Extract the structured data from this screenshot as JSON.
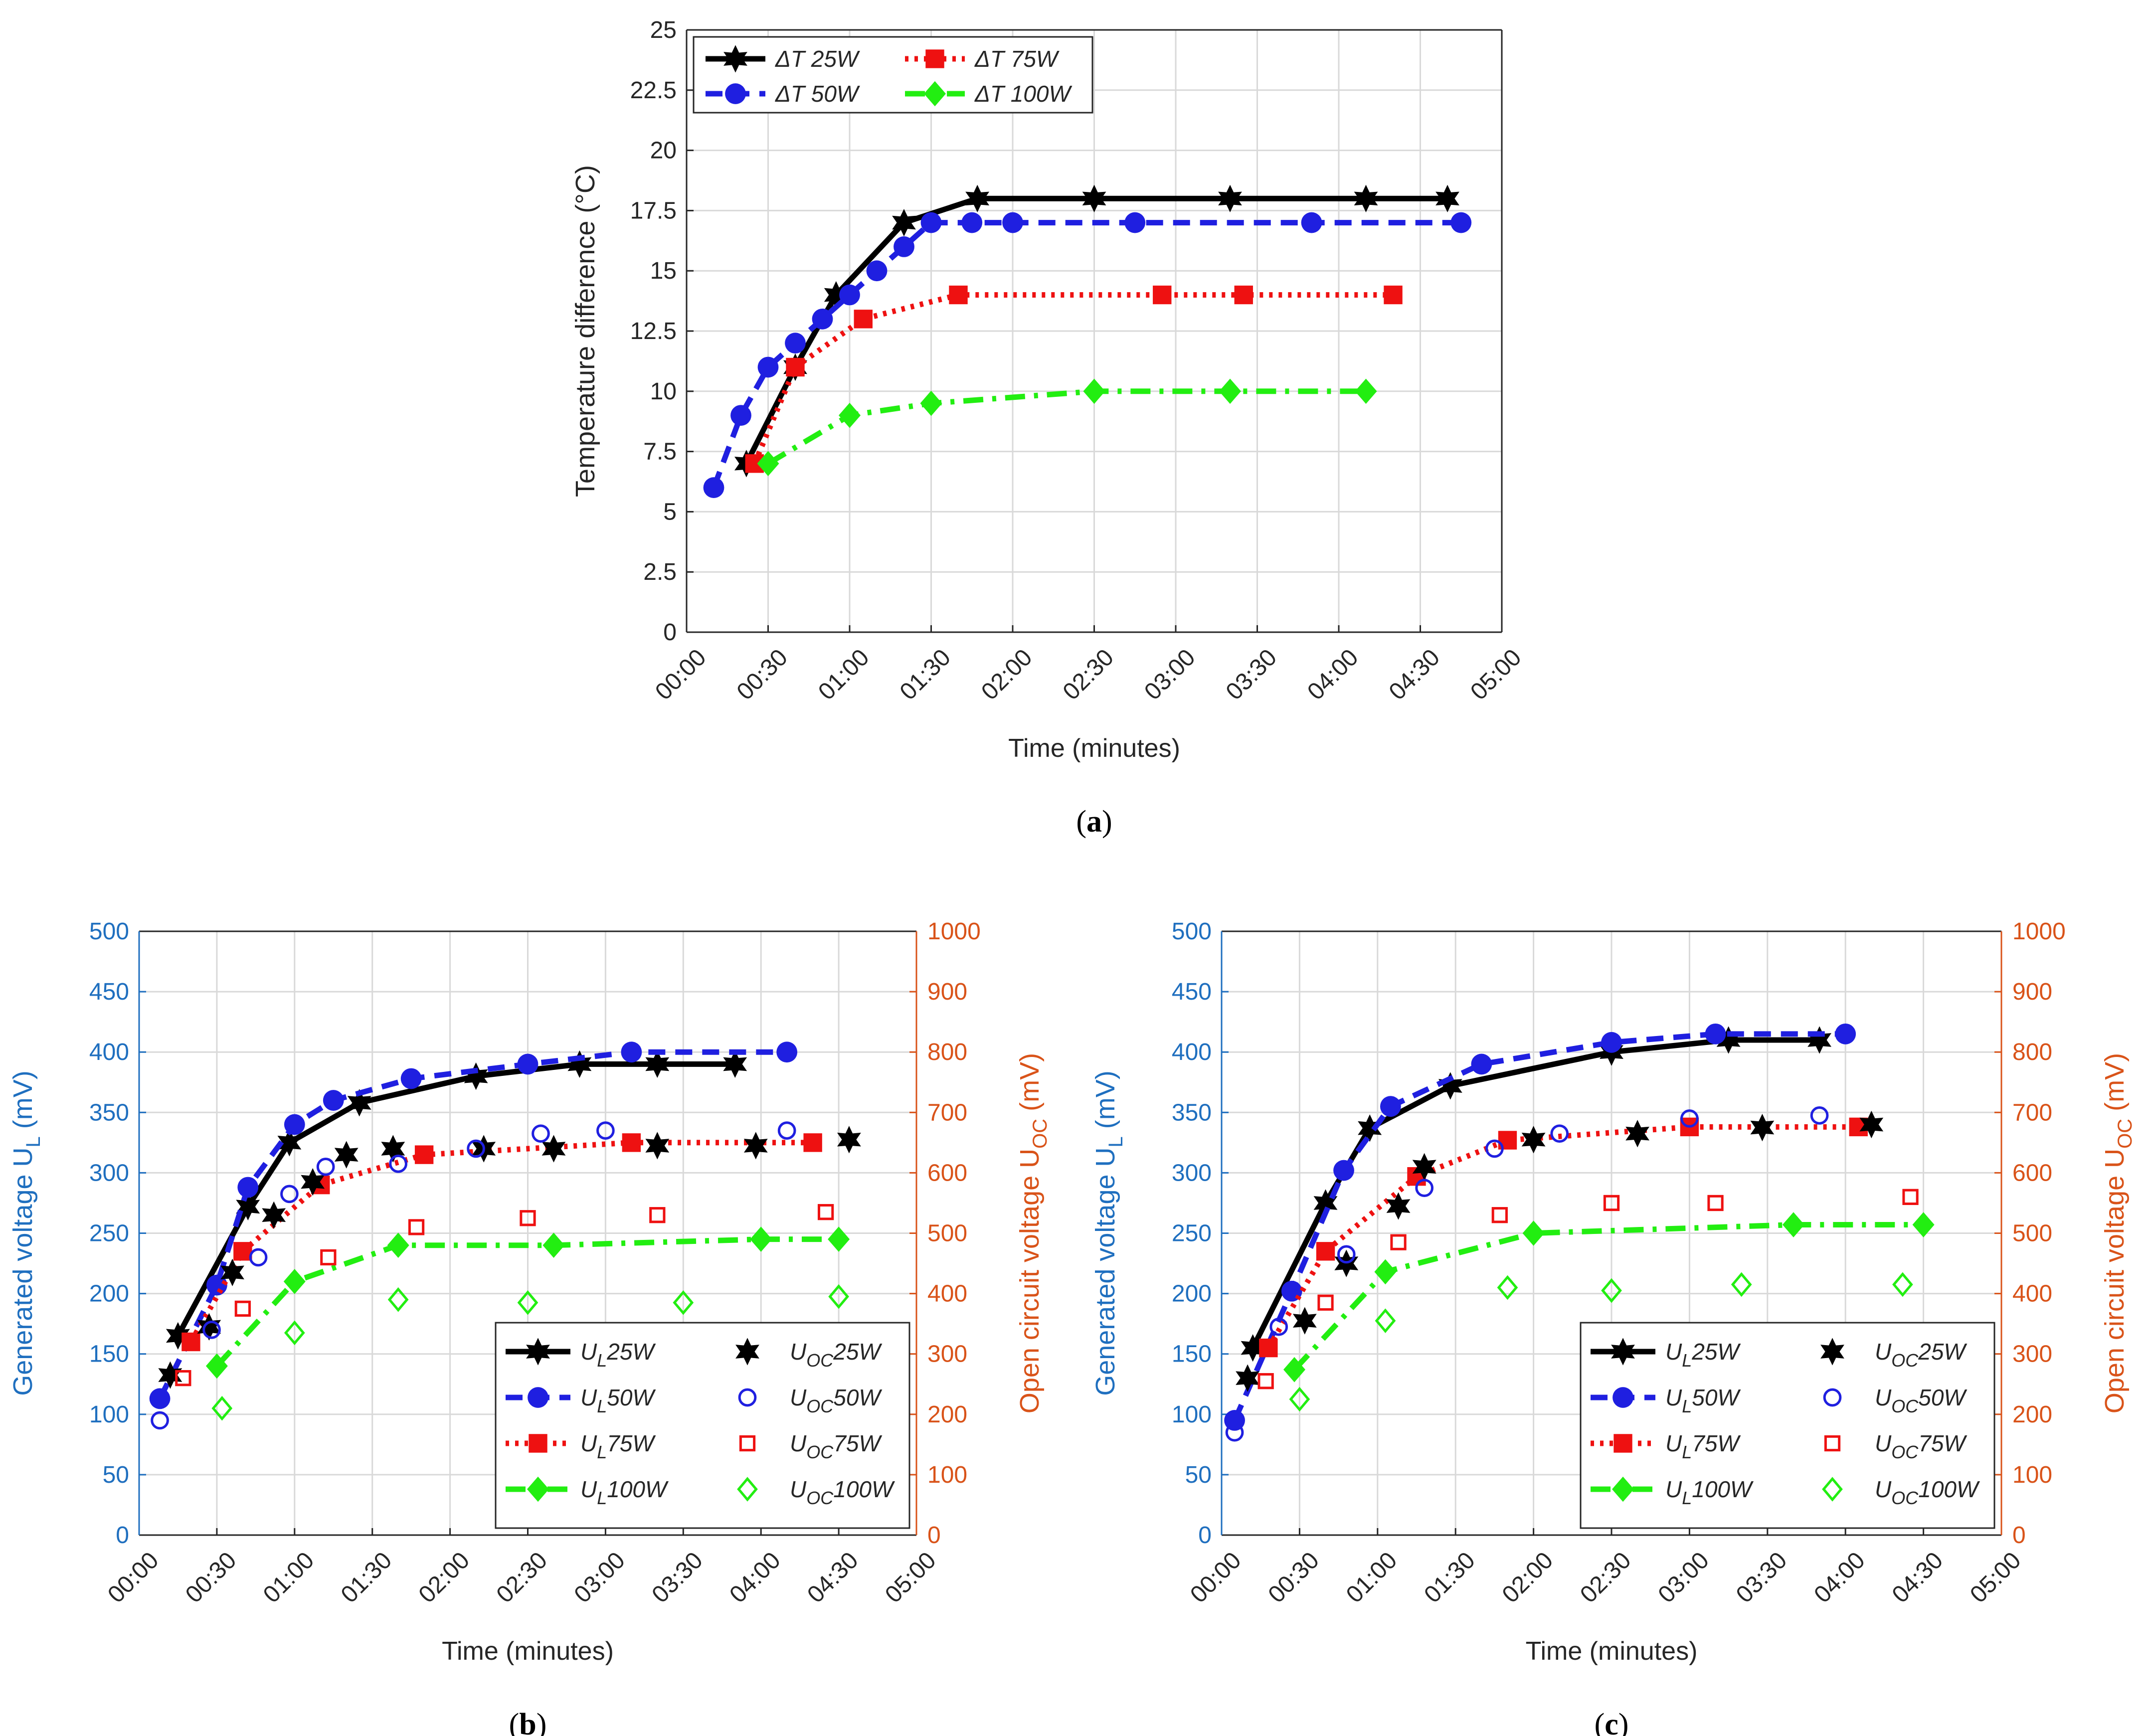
{
  "figure": {
    "panels": [
      "a",
      "b",
      "c"
    ]
  },
  "colors": {
    "black": "#000000",
    "blue": "#1f1fe0",
    "red": "#ee1111",
    "green": "#22ee11",
    "left_axis": "#1f6fbf",
    "right_axis": "#d95319",
    "grid": "#d9d9d9",
    "axis": "#262626"
  },
  "chart_data": [
    {
      "panel": "a",
      "caption": "(a)",
      "type": "line",
      "xlabel": "Time (minutes)",
      "ylabel": "Temperature difference (°C)",
      "xlim": [
        0,
        300
      ],
      "ylim": [
        0,
        25
      ],
      "x_tick_labels": [
        "00:00",
        "00:30",
        "01:00",
        "01:30",
        "02:00",
        "02:30",
        "03:00",
        "03:30",
        "04:00",
        "04:30",
        "05:00"
      ],
      "y_tick_labels": [
        "0",
        "2.5",
        "5",
        "7.5",
        "10",
        "12.5",
        "15",
        "17.5",
        "20",
        "22.5",
        "25"
      ],
      "grid": true,
      "legend_position": "top-left",
      "legend_columns": 2,
      "series": [
        {
          "name": "ΔT 25W",
          "color": "black",
          "style": "solid",
          "marker": "hexagram",
          "x": [
            22,
            40,
            55,
            80,
            107,
            150,
            200,
            250,
            280
          ],
          "y": [
            7,
            11,
            14,
            17,
            18,
            18,
            18,
            18,
            18
          ]
        },
        {
          "name": "ΔT 50W",
          "color": "blue",
          "style": "dash",
          "marker": "circle",
          "x": [
            10,
            20,
            30,
            40,
            50,
            60,
            70,
            80,
            90,
            105,
            120,
            165,
            230,
            285
          ],
          "y": [
            6,
            9,
            11,
            12,
            13,
            14,
            15,
            16,
            17,
            17,
            17,
            17,
            17,
            17
          ]
        },
        {
          "name": "ΔT 75W",
          "color": "red",
          "style": "dot",
          "marker": "square",
          "x": [
            25,
            40,
            65,
            100,
            175,
            205,
            260
          ],
          "y": [
            7,
            11,
            13,
            14,
            14,
            14,
            14
          ]
        },
        {
          "name": "ΔT 100W",
          "color": "green",
          "style": "dashdot",
          "marker": "diamond",
          "x": [
            30,
            60,
            90,
            150,
            200,
            250
          ],
          "y": [
            7,
            9,
            9.5,
            10,
            10,
            10
          ]
        }
      ]
    },
    {
      "panel": "b",
      "caption": "(b)",
      "type": "line",
      "xlabel": "Time (minutes)",
      "ylabel_left": "Generated voltage U",
      "ylabel_left_sub": "L",
      "ylabel_left_unit": " (mV)",
      "ylabel_right": "Open circuit voltage U",
      "ylabel_right_sub": "OC",
      "ylabel_right_unit": " (mV)",
      "xlim": [
        0,
        300
      ],
      "ylim_left": [
        0,
        500
      ],
      "ylim_right": [
        0,
        1000
      ],
      "x_tick_labels": [
        "00:00",
        "00:30",
        "01:00",
        "01:30",
        "02:00",
        "02:30",
        "03:00",
        "03:30",
        "04:00",
        "04:30",
        "05:00"
      ],
      "y_left_tick_labels": [
        "0",
        "50",
        "100",
        "150",
        "200",
        "250",
        "300",
        "350",
        "400",
        "450",
        "500"
      ],
      "y_right_tick_labels": [
        "0",
        "100",
        "200",
        "300",
        "400",
        "500",
        "600",
        "700",
        "800",
        "900",
        "1000"
      ],
      "grid": true,
      "legend_position": "bottom-right",
      "legend_columns": 2,
      "series": [
        {
          "name": "U",
          "sub": "L",
          "tail": "25W",
          "axis": "left",
          "color": "black",
          "style": "solid",
          "marker": "hexagram",
          "x": [
            15,
            42,
            58,
            85,
            130,
            170,
            200,
            230
          ],
          "y": [
            165,
            272,
            325,
            358,
            380,
            390,
            390,
            390
          ]
        },
        {
          "name": "U",
          "sub": "L",
          "tail": "50W",
          "axis": "left",
          "color": "blue",
          "style": "dash",
          "marker": "circle",
          "x": [
            8,
            30,
            42,
            60,
            75,
            105,
            150,
            190,
            250
          ],
          "y": [
            113,
            207,
            288,
            340,
            360,
            378,
            390,
            400,
            400
          ]
        },
        {
          "name": "U",
          "sub": "L",
          "tail": "75W",
          "axis": "left",
          "color": "red",
          "style": "dot",
          "marker": "square",
          "x": [
            20,
            40,
            70,
            110,
            190,
            260
          ],
          "y": [
            160,
            235,
            290,
            315,
            325,
            325
          ]
        },
        {
          "name": "U",
          "sub": "L",
          "tail": "100W",
          "axis": "left",
          "color": "green",
          "style": "dashdot",
          "marker": "diamond",
          "x": [
            30,
            60,
            100,
            160,
            240,
            270
          ],
          "y": [
            140,
            210,
            240,
            240,
            245,
            245
          ]
        },
        {
          "name": "U",
          "sub": "OC",
          "tail": "25W",
          "axis": "right",
          "color": "black",
          "style": "none",
          "marker": "hexagram-solid",
          "x": [
            12,
            27,
            36,
            52,
            67,
            80,
            98,
            133,
            160,
            200,
            238,
            274
          ],
          "y": [
            265,
            345,
            435,
            530,
            585,
            630,
            640,
            640,
            640,
            645,
            645,
            655
          ]
        },
        {
          "name": "U",
          "sub": "OC",
          "tail": "50W",
          "axis": "right",
          "color": "blue",
          "style": "none",
          "marker": "circle-open",
          "x": [
            8,
            28,
            46,
            58,
            72,
            100,
            130,
            155,
            180,
            250
          ],
          "y": [
            190,
            340,
            460,
            565,
            610,
            615,
            640,
            665,
            670,
            670
          ]
        },
        {
          "name": "U",
          "sub": "OC",
          "tail": "75W",
          "axis": "right",
          "color": "red",
          "style": "none",
          "marker": "square-open",
          "x": [
            17,
            40,
            73,
            107,
            150,
            200,
            265
          ],
          "y": [
            260,
            375,
            460,
            510,
            525,
            530,
            535
          ]
        },
        {
          "name": "U",
          "sub": "OC",
          "tail": "100W",
          "axis": "right",
          "color": "green",
          "style": "none",
          "marker": "diamond-open",
          "x": [
            32,
            60,
            100,
            150,
            210,
            270
          ],
          "y": [
            210,
            335,
            390,
            385,
            385,
            395
          ]
        }
      ]
    },
    {
      "panel": "c",
      "caption": "(c)",
      "type": "line",
      "xlabel": "Time (minutes)",
      "ylabel_left": "Generated voltage U",
      "ylabel_left_sub": "L",
      "ylabel_left_unit": " (mV)",
      "ylabel_right": "Open circuit voltage U",
      "ylabel_right_sub": "OC",
      "ylabel_right_unit": " (mV)",
      "xlim": [
        0,
        300
      ],
      "ylim_left": [
        0,
        500
      ],
      "ylim_right": [
        0,
        1000
      ],
      "x_tick_labels": [
        "00:00",
        "00:30",
        "01:00",
        "01:30",
        "02:00",
        "02:30",
        "03:00",
        "03:30",
        "04:00",
        "04:30",
        "05:00"
      ],
      "y_left_tick_labels": [
        "0",
        "50",
        "100",
        "150",
        "200",
        "250",
        "300",
        "350",
        "400",
        "450",
        "500"
      ],
      "y_right_tick_labels": [
        "0",
        "100",
        "200",
        "300",
        "400",
        "500",
        "600",
        "700",
        "800",
        "900",
        "1000"
      ],
      "grid": true,
      "legend_position": "bottom-right",
      "legend_columns": 2,
      "series": [
        {
          "name": "U",
          "sub": "L",
          "tail": "25W",
          "axis": "left",
          "color": "black",
          "style": "solid",
          "marker": "hexagram",
          "x": [
            12,
            40,
            57,
            88,
            150,
            195,
            230
          ],
          "y": [
            155,
            275,
            337,
            372,
            400,
            410,
            410
          ]
        },
        {
          "name": "U",
          "sub": "L",
          "tail": "50W",
          "axis": "left",
          "color": "blue",
          "style": "dash",
          "marker": "circle",
          "x": [
            5,
            27,
            47,
            65,
            100,
            150,
            190,
            240
          ],
          "y": [
            95,
            202,
            302,
            355,
            390,
            408,
            415,
            415
          ]
        },
        {
          "name": "U",
          "sub": "L",
          "tail": "75W",
          "axis": "left",
          "color": "red",
          "style": "dot",
          "marker": "square",
          "x": [
            18,
            40,
            75,
            110,
            180,
            245
          ],
          "y": [
            155,
            235,
            297,
            327,
            338,
            338
          ]
        },
        {
          "name": "U",
          "sub": "L",
          "tail": "100W",
          "axis": "left",
          "color": "green",
          "style": "dashdot",
          "marker": "diamond",
          "x": [
            28,
            63,
            120,
            220,
            270
          ],
          "y": [
            137,
            218,
            250,
            257,
            257
          ]
        },
        {
          "name": "U",
          "sub": "OC",
          "tail": "25W",
          "axis": "right",
          "color": "black",
          "style": "none",
          "marker": "hexagram-solid",
          "x": [
            10,
            32,
            48,
            68,
            78,
            120,
            160,
            208,
            250
          ],
          "y": [
            260,
            355,
            450,
            545,
            610,
            655,
            665,
            675,
            680
          ]
        },
        {
          "name": "U",
          "sub": "OC",
          "tail": "50W",
          "axis": "right",
          "color": "blue",
          "style": "none",
          "marker": "circle-open",
          "x": [
            5,
            22,
            48,
            78,
            105,
            130,
            180,
            230
          ],
          "y": [
            170,
            345,
            465,
            575,
            640,
            665,
            690,
            695
          ]
        },
        {
          "name": "U",
          "sub": "OC",
          "tail": "75W",
          "axis": "right",
          "color": "red",
          "style": "none",
          "marker": "square-open",
          "x": [
            17,
            40,
            68,
            107,
            150,
            190,
            265
          ],
          "y": [
            255,
            385,
            485,
            530,
            550,
            550,
            560
          ]
        },
        {
          "name": "U",
          "sub": "OC",
          "tail": "100W",
          "axis": "right",
          "color": "green",
          "style": "none",
          "marker": "diamond-open",
          "x": [
            30,
            63,
            110,
            150,
            200,
            262
          ],
          "y": [
            225,
            355,
            410,
            405,
            415,
            415
          ]
        }
      ]
    }
  ]
}
